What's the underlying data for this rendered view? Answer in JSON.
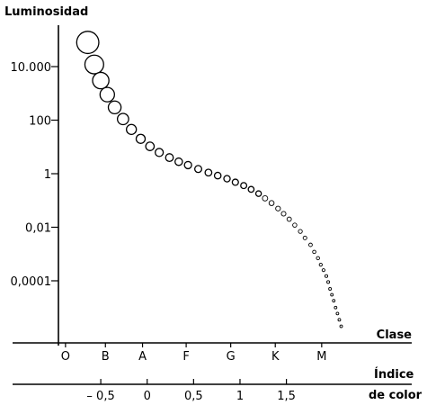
{
  "chart_data": {
    "type": "scatter",
    "ylabel": "Luminosidad",
    "y_scale": "log",
    "y_ticks": [
      {
        "value": 10000,
        "label": "10.000"
      },
      {
        "value": 100,
        "label": "100"
      },
      {
        "value": 1,
        "label": "1"
      },
      {
        "value": 0.01,
        "label": "0,01"
      },
      {
        "value": 0.0001,
        "label": "0,0001"
      }
    ],
    "x_axis_primary": {
      "label": "Clase",
      "categories": [
        "O",
        "B",
        "A",
        "F",
        "G",
        "K",
        "M"
      ]
    },
    "x_axis_secondary": {
      "label_line1": "Índice",
      "label_line2": "de color",
      "xlim": [
        -1.45,
        2.85
      ],
      "ticks": [
        {
          "value": -0.5,
          "label": "– 0,5"
        },
        {
          "value": 0,
          "label": "0"
        },
        {
          "value": 0.5,
          "label": "0,5"
        },
        {
          "value": 1,
          "label": "1"
        },
        {
          "value": 1.5,
          "label": "1,5"
        }
      ]
    },
    "class_positions": [
      {
        "class": "O",
        "color_index": -0.88
      },
      {
        "class": "B",
        "color_index": -0.45
      },
      {
        "class": "A",
        "color_index": -0.05
      },
      {
        "class": "F",
        "color_index": 0.42
      },
      {
        "class": "G",
        "color_index": 0.9
      },
      {
        "class": "K",
        "color_index": 1.38
      },
      {
        "class": "M",
        "color_index": 1.88
      }
    ],
    "series": [
      {
        "values": [
          {
            "x": -0.64,
            "y": 80000
          },
          {
            "x": -0.57,
            "y": 12000
          },
          {
            "x": -0.5,
            "y": 3000
          },
          {
            "x": -0.43,
            "y": 900
          },
          {
            "x": -0.35,
            "y": 300
          },
          {
            "x": -0.26,
            "y": 110
          },
          {
            "x": -0.17,
            "y": 45
          },
          {
            "x": -0.07,
            "y": 20
          },
          {
            "x": 0.03,
            "y": 10.5
          },
          {
            "x": 0.13,
            "y": 6.2
          },
          {
            "x": 0.24,
            "y": 4.0
          },
          {
            "x": 0.34,
            "y": 2.8
          },
          {
            "x": 0.44,
            "y": 2.1
          },
          {
            "x": 0.55,
            "y": 1.5
          },
          {
            "x": 0.66,
            "y": 1.1
          },
          {
            "x": 0.76,
            "y": 0.85
          },
          {
            "x": 0.86,
            "y": 0.65
          },
          {
            "x": 0.95,
            "y": 0.48
          },
          {
            "x": 1.04,
            "y": 0.36
          },
          {
            "x": 1.12,
            "y": 0.26
          },
          {
            "x": 1.2,
            "y": 0.18
          },
          {
            "x": 1.27,
            "y": 0.12
          },
          {
            "x": 1.34,
            "y": 0.08
          },
          {
            "x": 1.41,
            "y": 0.05
          },
          {
            "x": 1.47,
            "y": 0.032
          },
          {
            "x": 1.53,
            "y": 0.02
          },
          {
            "x": 1.59,
            "y": 0.012
          },
          {
            "x": 1.65,
            "y": 0.007
          },
          {
            "x": 1.7,
            "y": 0.004
          },
          {
            "x": 1.76,
            "y": 0.0022
          },
          {
            "x": 1.8,
            "y": 0.0012
          },
          {
            "x": 1.84,
            "y": 0.0007
          },
          {
            "x": 1.87,
            "y": 0.0004
          },
          {
            "x": 1.9,
            "y": 0.00025
          },
          {
            "x": 1.93,
            "y": 0.00015
          },
          {
            "x": 1.95,
            "y": 9e-05
          },
          {
            "x": 1.97,
            "y": 5e-05
          },
          {
            "x": 1.99,
            "y": 3e-05
          },
          {
            "x": 2.01,
            "y": 1.8e-05
          },
          {
            "x": 2.03,
            "y": 1e-05
          },
          {
            "x": 2.05,
            "y": 6e-06
          },
          {
            "x": 2.07,
            "y": 3.5e-06
          },
          {
            "x": 2.09,
            "y": 2e-06
          }
        ]
      }
    ]
  }
}
